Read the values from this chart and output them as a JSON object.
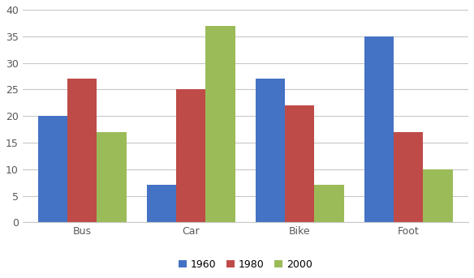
{
  "categories": [
    "Bus",
    "Car",
    "Bike",
    "Foot"
  ],
  "series": {
    "1960": [
      20,
      7,
      27,
      35
    ],
    "1980": [
      27,
      25,
      22,
      17
    ],
    "2000": [
      17,
      37,
      7,
      10
    ]
  },
  "colors": {
    "1960": "#4472C4",
    "1980": "#BE4B48",
    "2000": "#9BBB59"
  },
  "ylim": [
    0,
    40
  ],
  "yticks": [
    0,
    5,
    10,
    15,
    20,
    25,
    30,
    35,
    40
  ],
  "legend_labels": [
    "1960",
    "1980",
    "2000"
  ],
  "background_color": "#ffffff",
  "grid_color": "#c8c8c8"
}
